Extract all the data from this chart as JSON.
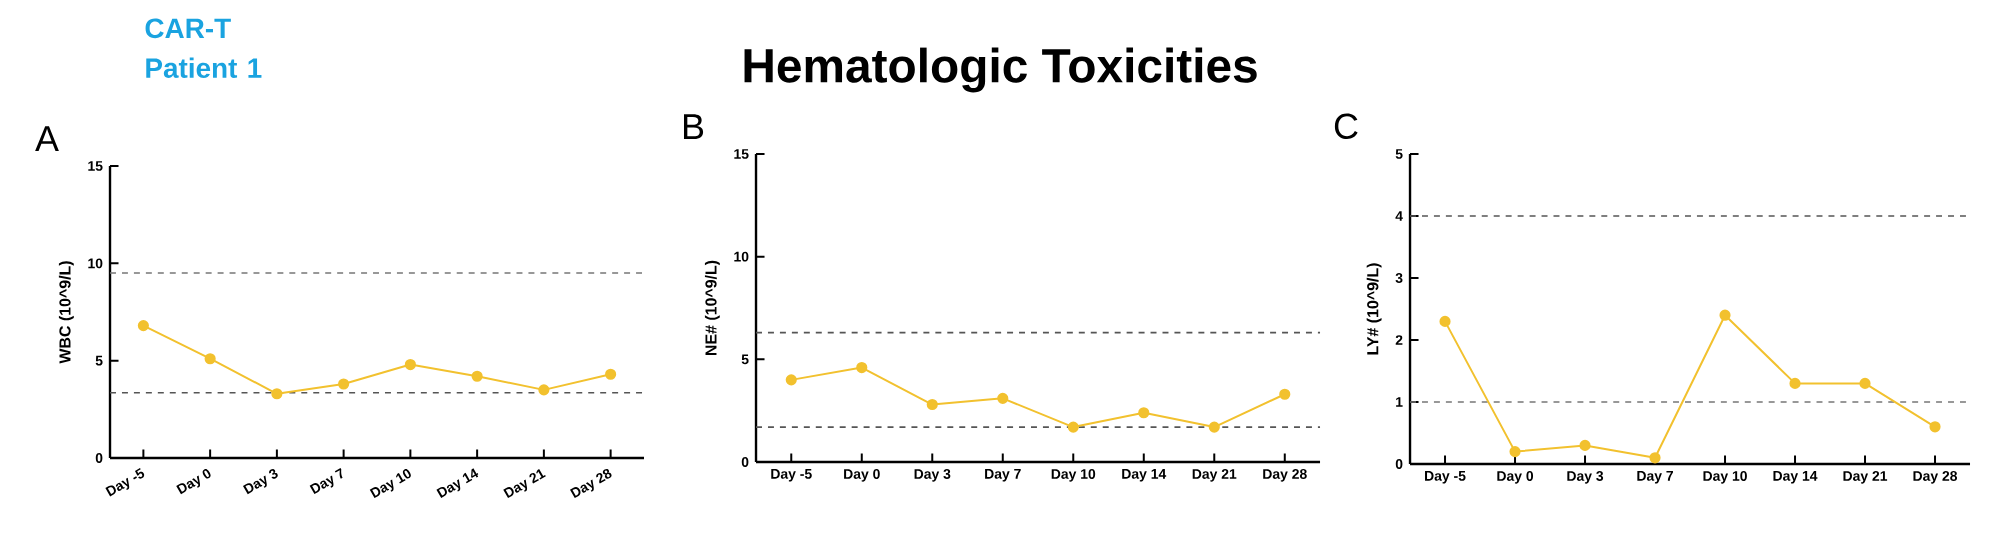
{
  "chart_data": [
    {
      "type": "other",
      "title": "Hematologic Toxicities",
      "subtitle": "CAR-T Patient 1"
    },
    {
      "type": "line",
      "title": "A",
      "ylabel": "WBC (10^9/L)",
      "categories": [
        "Day -5",
        "Day 0",
        "Day 3",
        "Day 7",
        "Day 10",
        "Day 14",
        "Day 21",
        "Day 28"
      ],
      "series": [
        {
          "color": "#f2c12e",
          "values": [
            6.8,
            5.1,
            3.3,
            3.8,
            4.8,
            4.2,
            3.5,
            4.3
          ]
        }
      ],
      "ylim": [
        0,
        15
      ],
      "yticks": [
        0,
        5,
        10,
        15
      ],
      "marker": "circle",
      "line_style": "solid",
      "grid": false,
      "ref_lines": [
        {
          "axis": "y",
          "value": 9.5,
          "color": "#777777",
          "line_style": "dashed"
        },
        {
          "axis": "y",
          "value": 3.35,
          "color": "#555555",
          "line_style": "dashed"
        }
      ]
    },
    {
      "type": "line",
      "title": "B",
      "ylabel": "NE# (10^9/L)",
      "categories": [
        "Day -5",
        "Day 0",
        "Day 3",
        "Day 7",
        "Day 10",
        "Day 14",
        "Day 21",
        "Day 28"
      ],
      "series": [
        {
          "color": "#f2c12e",
          "values": [
            4.0,
            4.6,
            2.8,
            3.1,
            1.7,
            2.4,
            1.7,
            3.3
          ]
        }
      ],
      "ylim": [
        0,
        15
      ],
      "yticks": [
        0,
        5,
        10,
        15
      ],
      "marker": "circle",
      "line_style": "solid",
      "grid": false,
      "ref_lines": [
        {
          "axis": "y",
          "value": 6.3,
          "color": "#555555",
          "line_style": "dashed"
        },
        {
          "axis": "y",
          "value": 1.7,
          "color": "#555555",
          "line_style": "dashed"
        }
      ]
    },
    {
      "type": "line",
      "title": "C",
      "ylabel": "LY# (10^9/L)",
      "categories": [
        "Day -5",
        "Day 0",
        "Day 3",
        "Day 7",
        "Day 10",
        "Day 14",
        "Day 21",
        "Day 28"
      ],
      "series": [
        {
          "color": "#f2c12e",
          "values": [
            2.3,
            0.2,
            0.3,
            0.1,
            2.4,
            1.3,
            1.3,
            0.6
          ]
        }
      ],
      "ylim": [
        0,
        5
      ],
      "yticks": [
        0,
        1,
        2,
        3,
        4,
        5
      ],
      "marker": "circle",
      "line_style": "solid",
      "grid": false,
      "ref_lines": [
        {
          "axis": "y",
          "value": 4,
          "color": "#555555",
          "line_style": "dashed"
        },
        {
          "axis": "y",
          "value": 1,
          "color": "#777777",
          "line_style": "dashed"
        }
      ]
    }
  ]
}
